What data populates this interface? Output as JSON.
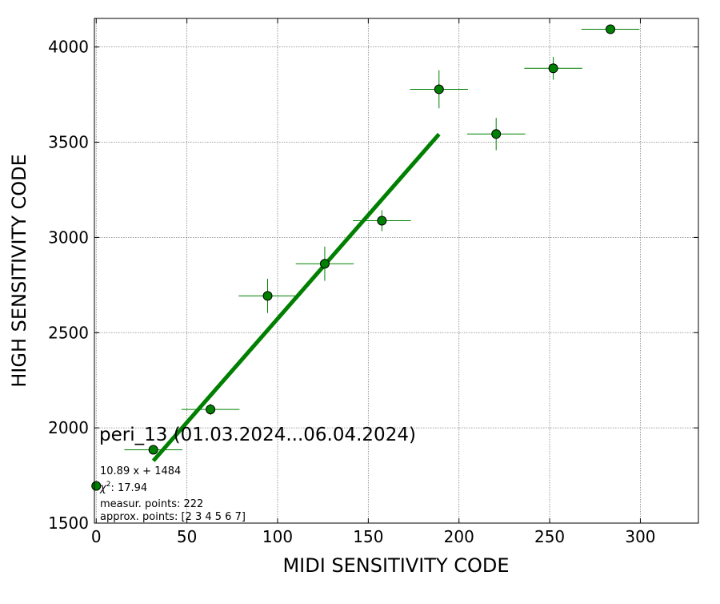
{
  "chart_data": {
    "type": "scatter",
    "xlabel": "MIDI SENSITIVITY CODE",
    "ylabel": "HIGH SENSITIVITY CODE",
    "xlim": [
      -1,
      332
    ],
    "ylim": [
      1500,
      4150
    ],
    "x_ticks": [
      0,
      50,
      100,
      150,
      200,
      250,
      300
    ],
    "y_ticks": [
      1500,
      2000,
      2500,
      3000,
      3500,
      4000
    ],
    "grid": true,
    "points": [
      {
        "x": 0,
        "y": 1695,
        "xerr": 0,
        "yerr": 0
      },
      {
        "x": 31.5,
        "y": 1885,
        "xerr": 16,
        "yerr": 0
      },
      {
        "x": 63,
        "y": 2097,
        "xerr": 16,
        "yerr": 30
      },
      {
        "x": 94.5,
        "y": 2693,
        "xerr": 16,
        "yerr": 90
      },
      {
        "x": 126,
        "y": 2862,
        "xerr": 16,
        "yerr": 90
      },
      {
        "x": 157.5,
        "y": 3088,
        "xerr": 16,
        "yerr": 55
      },
      {
        "x": 189,
        "y": 3778,
        "xerr": 16,
        "yerr": 100
      },
      {
        "x": 220.5,
        "y": 3543,
        "xerr": 16,
        "yerr": 85
      },
      {
        "x": 252,
        "y": 3888,
        "xerr": 16,
        "yerr": 60
      },
      {
        "x": 283.5,
        "y": 4093,
        "xerr": 16,
        "yerr": 0
      }
    ],
    "fit": {
      "slope": 10.89,
      "intercept": 1484,
      "x_range": [
        31.5,
        189
      ]
    },
    "colors": {
      "marker": "#008000",
      "fit_line": "#008000",
      "grid": "#808080"
    },
    "annotations": {
      "title": "peri_13 (01.03.2024...06.04.2024)",
      "equation": "10.89 x + 1484",
      "chi_symbol": "χ",
      "chi_exp": "2",
      "chi_value": ": 17.94",
      "measur": "measur. points: 222",
      "approx": "approx. points: [2 3 4 5 6 7]"
    }
  }
}
